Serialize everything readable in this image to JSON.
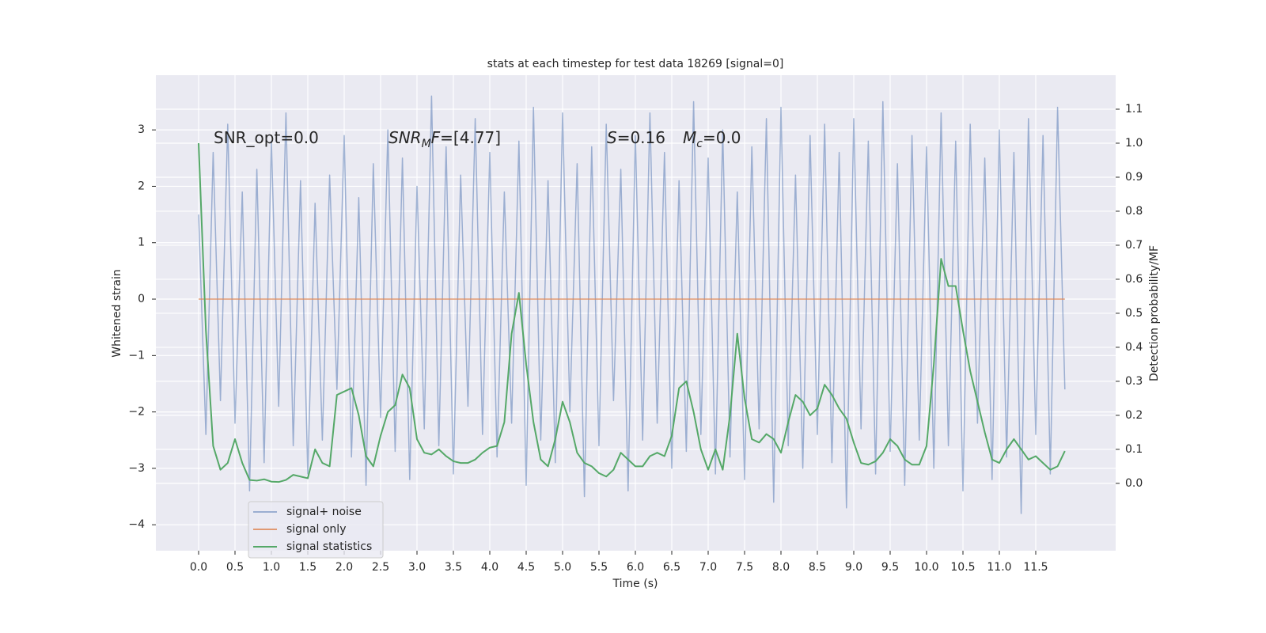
{
  "chart_data": {
    "type": "line",
    "title": "stats at each timestep for test data 18269 [signal=0]",
    "xlabel": "Time (s)",
    "ylabel": "Whitened strain",
    "y2label": "Detection probability/MF",
    "annotations": [
      {
        "parts": [
          {
            "text": "SNR_opt=0.0"
          }
        ]
      },
      {
        "parts": [
          {
            "text": "SNR",
            "style": "italic"
          },
          {
            "text": "M",
            "style": "italic-sub"
          },
          {
            "text": "F",
            "style": "italic"
          },
          {
            "text": "=[4.77]"
          }
        ]
      },
      {
        "parts": [
          {
            "text": "S",
            "style": "italic"
          },
          {
            "text": "=0.16"
          },
          {
            "text": "M",
            "style": "italic-gap"
          },
          {
            "text": "c",
            "style": "italic-sub"
          },
          {
            "text": "=0.0"
          }
        ]
      }
    ],
    "x": [
      0.0,
      0.1,
      0.2,
      0.3,
      0.4,
      0.5,
      0.6,
      0.7,
      0.8,
      0.9,
      1.0,
      1.1,
      1.2,
      1.3,
      1.4,
      1.5,
      1.6,
      1.7,
      1.8,
      1.9,
      2.0,
      2.1,
      2.2,
      2.3,
      2.4,
      2.5,
      2.6,
      2.7,
      2.8,
      2.9,
      3.0,
      3.1,
      3.2,
      3.3,
      3.4,
      3.5,
      3.6,
      3.7,
      3.8,
      3.9,
      4.0,
      4.1,
      4.2,
      4.3,
      4.4,
      4.5,
      4.6,
      4.7,
      4.8,
      4.9,
      5.0,
      5.1,
      5.2,
      5.3,
      5.4,
      5.5,
      5.6,
      5.7,
      5.8,
      5.9,
      6.0,
      6.1,
      6.2,
      6.3,
      6.4,
      6.5,
      6.6,
      6.7,
      6.8,
      6.9,
      7.0,
      7.1,
      7.2,
      7.3,
      7.4,
      7.5,
      7.6,
      7.7,
      7.8,
      7.9,
      8.0,
      8.1,
      8.2,
      8.3,
      8.4,
      8.5,
      8.6,
      8.7,
      8.8,
      8.9,
      9.0,
      9.1,
      9.2,
      9.3,
      9.4,
      9.5,
      9.6,
      9.7,
      9.8,
      9.9,
      10.0,
      10.1,
      10.2,
      10.3,
      10.4,
      10.5,
      10.6,
      10.7,
      10.8,
      10.9,
      11.0,
      11.1,
      11.2,
      11.3,
      11.4,
      11.5,
      11.6,
      11.7,
      11.8,
      11.9
    ],
    "series": [
      {
        "name": "signal+ noise",
        "color": "#4c72b0",
        "opacity": 0.5,
        "values": [
          1.5,
          -2.4,
          2.6,
          -1.8,
          3.1,
          -2.2,
          1.9,
          -3.4,
          2.3,
          -2.9,
          2.8,
          -1.9,
          3.3,
          -2.6,
          2.1,
          -3.1,
          1.7,
          -2.5,
          2.2,
          -1.6,
          2.9,
          -2.8,
          1.8,
          -3.3,
          2.4,
          -2.1,
          3.0,
          -2.7,
          2.5,
          -3.2,
          2.0,
          -2.3,
          3.6,
          -2.6,
          2.7,
          -3.1,
          2.2,
          -1.9,
          3.2,
          -2.4,
          2.6,
          -2.8,
          1.9,
          -2.2,
          2.8,
          -3.3,
          3.4,
          -2.5,
          2.1,
          -2.9,
          3.3,
          -2.0,
          2.4,
          -3.5,
          2.7,
          -2.6,
          3.1,
          -1.8,
          2.3,
          -3.4,
          2.9,
          -2.5,
          3.3,
          -2.2,
          2.6,
          -3.0,
          2.1,
          -2.7,
          3.5,
          -2.4,
          2.5,
          -3.1,
          3.0,
          -2.8,
          1.9,
          -3.2,
          2.7,
          -2.3,
          3.2,
          -3.6,
          3.4,
          -2.6,
          2.2,
          -3.0,
          2.9,
          -2.4,
          3.1,
          -2.9,
          2.6,
          -3.7,
          3.2,
          -2.3,
          2.8,
          -3.1,
          3.5,
          -2.7,
          2.4,
          -3.3,
          2.9,
          -2.5,
          2.7,
          -3.0,
          3.3,
          -2.6,
          2.8,
          -3.4,
          3.1,
          -2.2,
          2.5,
          -3.2,
          3.0,
          -2.8,
          2.6,
          -3.8,
          3.2,
          -2.4,
          2.9,
          -3.1,
          3.4,
          -1.6
        ]
      },
      {
        "name": "signal only",
        "color": "#dd8452",
        "opacity": 0.8,
        "values": [
          0,
          0,
          0,
          0,
          0,
          0,
          0,
          0,
          0,
          0,
          0,
          0,
          0,
          0,
          0,
          0,
          0,
          0,
          0,
          0,
          0,
          0,
          0,
          0,
          0,
          0,
          0,
          0,
          0,
          0,
          0,
          0,
          0,
          0,
          0,
          0,
          0,
          0,
          0,
          0,
          0,
          0,
          0,
          0,
          0,
          0,
          0,
          0,
          0,
          0,
          0,
          0,
          0,
          0,
          0,
          0,
          0,
          0,
          0,
          0,
          0,
          0,
          0,
          0,
          0,
          0,
          0,
          0,
          0,
          0,
          0,
          0,
          0,
          0,
          0,
          0,
          0,
          0,
          0,
          0,
          0,
          0,
          0,
          0,
          0,
          0,
          0,
          0,
          0,
          0,
          0,
          0,
          0,
          0,
          0,
          0,
          0,
          0,
          0,
          0,
          0,
          0,
          0,
          0,
          0,
          0,
          0,
          0,
          0,
          0,
          0,
          0,
          0,
          0,
          0,
          0,
          0,
          0,
          0,
          0
        ]
      },
      {
        "name": "signal statistics",
        "color": "#55a868",
        "opacity": 1,
        "axis": "y2",
        "values": [
          1.0,
          0.45,
          0.11,
          0.04,
          0.06,
          0.13,
          0.06,
          0.01,
          0.008,
          0.012,
          0.005,
          0.004,
          0.01,
          0.025,
          0.02,
          0.015,
          0.1,
          0.06,
          0.05,
          0.26,
          0.27,
          0.28,
          0.2,
          0.08,
          0.05,
          0.14,
          0.21,
          0.23,
          0.32,
          0.28,
          0.13,
          0.09,
          0.085,
          0.1,
          0.08,
          0.065,
          0.06,
          0.06,
          0.07,
          0.09,
          0.105,
          0.11,
          0.18,
          0.44,
          0.56,
          0.35,
          0.18,
          0.07,
          0.05,
          0.13,
          0.24,
          0.18,
          0.09,
          0.06,
          0.05,
          0.03,
          0.02,
          0.04,
          0.09,
          0.07,
          0.05,
          0.05,
          0.08,
          0.09,
          0.08,
          0.14,
          0.28,
          0.3,
          0.21,
          0.1,
          0.04,
          0.1,
          0.04,
          0.2,
          0.44,
          0.25,
          0.13,
          0.12,
          0.145,
          0.13,
          0.09,
          0.18,
          0.26,
          0.24,
          0.2,
          0.22,
          0.29,
          0.26,
          0.22,
          0.19,
          0.12,
          0.06,
          0.055,
          0.065,
          0.09,
          0.13,
          0.11,
          0.07,
          0.055,
          0.055,
          0.11,
          0.35,
          0.66,
          0.58,
          0.58,
          0.45,
          0.33,
          0.24,
          0.15,
          0.07,
          0.06,
          0.1,
          0.13,
          0.1,
          0.07,
          0.08,
          0.06,
          0.04,
          0.05,
          0.095
        ]
      }
    ],
    "xlim": [
      -0.587,
      12.598
    ],
    "ylim": [
      -4.46,
      3.97
    ],
    "y2lim": [
      -0.198,
      1.2
    ],
    "xticks": [
      {
        "value": 0,
        "label": "0.0"
      },
      0.5,
      {
        "value": 1,
        "label": "1.0"
      },
      1.5,
      {
        "value": 2,
        "label": "2.0"
      },
      2.5,
      {
        "value": 3,
        "label": "3.0"
      },
      3.5,
      {
        "value": 4,
        "label": "4.0"
      },
      4.5,
      {
        "value": 5,
        "label": "5.0"
      },
      5.5,
      {
        "value": 6,
        "label": "6.0"
      },
      6.5,
      {
        "value": 7,
        "label": "7.0"
      },
      7.5,
      {
        "value": 8,
        "label": "8.0"
      },
      8.5,
      {
        "value": 9,
        "label": "9.0"
      },
      9.5,
      {
        "value": 10,
        "label": "10.0"
      },
      10.5,
      {
        "value": 11,
        "label": "11.0"
      },
      11.5
    ],
    "yticks": [
      {
        "value": -4,
        "label": "−4"
      },
      {
        "value": -3,
        "label": "−3"
      },
      {
        "value": -2,
        "label": "−2"
      },
      {
        "value": -1,
        "label": "−1"
      },
      0,
      1,
      2,
      3
    ],
    "y2ticks": [
      {
        "value": 0,
        "label": "0.0"
      },
      0.1,
      0.2,
      0.3,
      0.4,
      0.5,
      0.6,
      0.7,
      0.8,
      0.9,
      {
        "value": 1,
        "label": "1.0"
      },
      1.1
    ],
    "grid": true,
    "legend": "lower left"
  }
}
